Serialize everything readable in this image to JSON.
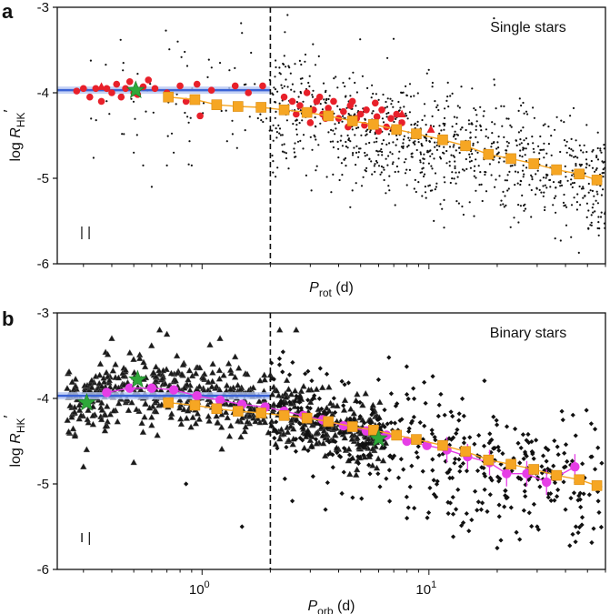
{
  "figure": {
    "colors": {
      "black": "#111111",
      "red": "#e8202a",
      "orange": "#f6a623",
      "magenta": "#e63ee6",
      "green": "#2ea83a",
      "blue": "#3a63d6",
      "gray": "#8a8a8a"
    }
  },
  "chart_data": [
    {
      "panel_letter": "a",
      "title": "Single stars",
      "type": "scatter",
      "x_scale": "log",
      "xlim": [
        0.23,
        60
      ],
      "ylim": [
        -6,
        -3
      ],
      "yticks": [
        "-3",
        "-4",
        "-5",
        "-6"
      ],
      "ytick_values": [
        -3,
        -4,
        -5,
        -6
      ],
      "xticks": [],
      "xlabel_main": "P",
      "xlabel_sub": "rot",
      "xlabel_unit": " (d)",
      "ylabel_main": "log R",
      "ylabel_sub": "HK",
      "ylabel_prime": "′",
      "divider_x": 2.0,
      "saturated_level": {
        "value": -3.97,
        "x_start": 0.23,
        "x_end": 2.0
      },
      "background_cloud": {
        "description_free": true,
        "trend": [
          [
            0.25,
            -4.0
          ],
          [
            1.0,
            -4.05
          ],
          [
            2.0,
            -4.15
          ],
          [
            5.0,
            -4.4
          ],
          [
            10.0,
            -4.6
          ],
          [
            20.0,
            -4.75
          ],
          [
            40.0,
            -4.95
          ],
          [
            55.0,
            -5.05
          ]
        ],
        "spread": 0.35,
        "n_points": 1500,
        "sparse_left": [
          [
            0.5,
            -4.7
          ],
          [
            0.55,
            -4.85
          ],
          [
            0.75,
            -4.7
          ],
          [
            0.7,
            -4.85
          ],
          [
            0.45,
            -3.65
          ],
          [
            1.2,
            -3.65
          ],
          [
            1.5,
            -3.3
          ],
          [
            0.9,
            -4.85
          ],
          [
            0.6,
            -5.1
          ]
        ]
      },
      "series": [
        {
          "marker": "circle",
          "color": "#e8202a",
          "points": [
            [
              0.28,
              -3.98
            ],
            [
              0.3,
              -3.95
            ],
            [
              0.32,
              -4.05
            ],
            [
              0.34,
              -3.95
            ],
            [
              0.36,
              -4.1
            ],
            [
              0.38,
              -3.95
            ],
            [
              0.4,
              -4.0
            ],
            [
              0.42,
              -3.9
            ],
            [
              0.44,
              -4.05
            ],
            [
              0.46,
              -3.95
            ],
            [
              0.48,
              -3.87
            ],
            [
              0.5,
              -4.0
            ],
            [
              0.52,
              -4.02
            ],
            [
              0.55,
              -3.93
            ],
            [
              0.58,
              -3.85
            ],
            [
              0.62,
              -3.95
            ],
            [
              0.7,
              -4.0
            ],
            [
              0.8,
              -3.92
            ],
            [
              0.85,
              -4.1
            ],
            [
              0.95,
              -3.9
            ],
            [
              1.1,
              -3.97
            ],
            [
              1.4,
              -3.92
            ],
            [
              1.6,
              -4.0
            ],
            [
              1.85,
              -3.92
            ],
            [
              0.98,
              -4.27
            ],
            [
              2.3,
              -4.05
            ],
            [
              2.5,
              -4.1
            ],
            [
              2.7,
              -4.15
            ],
            [
              2.9,
              -4.0
            ],
            [
              3.1,
              -4.2
            ],
            [
              3.2,
              -4.1
            ],
            [
              3.4,
              -4.25
            ],
            [
              3.6,
              -4.18
            ],
            [
              3.8,
              -4.1
            ],
            [
              4.0,
              -4.3
            ],
            [
              4.2,
              -4.22
            ],
            [
              4.5,
              -4.15
            ],
            [
              4.8,
              -4.3
            ],
            [
              5.0,
              -4.25
            ],
            [
              5.3,
              -4.2
            ],
            [
              5.6,
              -4.35
            ],
            [
              5.9,
              -4.28
            ],
            [
              6.2,
              -4.2
            ],
            [
              6.5,
              -4.4
            ],
            [
              6.8,
              -4.3
            ],
            [
              7.2,
              -4.25
            ],
            [
              7.6,
              -4.35
            ],
            [
              2.6,
              -4.25
            ],
            [
              3.0,
              -4.35
            ],
            [
              3.5,
              -4.3
            ],
            [
              4.4,
              -4.4
            ],
            [
              5.2,
              -4.38
            ],
            [
              6.0,
              -4.45
            ],
            [
              7.0,
              -4.42
            ],
            [
              3.3,
              -4.05
            ],
            [
              4.6,
              -4.1
            ],
            [
              5.8,
              -4.12
            ]
          ]
        },
        {
          "marker": "triangle",
          "color": "#e8202a",
          "points": [
            [
              0.36,
              -3.93
            ],
            [
              7.6,
              -4.25
            ],
            [
              10.2,
              -4.43
            ]
          ]
        },
        {
          "marker": "square",
          "color": "#f6a623",
          "points": [
            [
              0.71,
              -4.05
            ],
            [
              0.93,
              -4.08
            ],
            [
              1.16,
              -4.14
            ],
            [
              1.44,
              -4.16
            ],
            [
              1.82,
              -4.17
            ],
            [
              2.3,
              -4.2
            ],
            [
              2.9,
              -4.23
            ],
            [
              3.6,
              -4.27
            ],
            [
              4.6,
              -4.33
            ],
            [
              5.7,
              -4.37
            ],
            [
              7.2,
              -4.43
            ],
            [
              8.8,
              -4.48
            ],
            [
              11.5,
              -4.55
            ],
            [
              14.5,
              -4.62
            ],
            [
              18.3,
              -4.72
            ],
            [
              23.0,
              -4.77
            ],
            [
              29.0,
              -4.83
            ],
            [
              36.5,
              -4.9
            ],
            [
              46.0,
              -4.95
            ],
            [
              55.0,
              -5.02
            ]
          ]
        },
        {
          "marker": "star",
          "color": "#2ea83a",
          "points": [
            [
              0.51,
              -3.97
            ]
          ]
        }
      ],
      "corner_marks": "| |"
    },
    {
      "panel_letter": "b",
      "title": "Binary stars",
      "type": "scatter",
      "x_scale": "log",
      "xlim": [
        0.23,
        60
      ],
      "ylim": [
        -6,
        -3
      ],
      "yticks": [
        "-3",
        "-4",
        "-5",
        "-6"
      ],
      "ytick_values": [
        -3,
        -4,
        -5,
        -6
      ],
      "xticks": [
        {
          "value": 1,
          "base": "10",
          "exp": "0"
        },
        {
          "value": 10,
          "base": "10",
          "exp": "1"
        }
      ],
      "xlabel_main": "P",
      "xlabel_sub": "orb",
      "xlabel_unit": " (d)",
      "ylabel_main": "log R",
      "ylabel_sub": "HK",
      "ylabel_prime": "′",
      "divider_x": 2.0,
      "saturated_level": {
        "value": -3.97,
        "x_start": 0.23,
        "x_end": 2.0
      },
      "triangle_cloud": {
        "trend": [
          [
            0.25,
            -4.0
          ],
          [
            0.5,
            -3.9
          ],
          [
            1.0,
            -3.95
          ],
          [
            2.0,
            -4.1
          ],
          [
            3.0,
            -4.25
          ],
          [
            6.0,
            -4.45
          ]
        ],
        "spread": 0.2,
        "n_points": 700,
        "outliers": [
          [
            0.3,
            -4.8
          ],
          [
            0.31,
            -4.6
          ],
          [
            0.5,
            -4.75
          ],
          [
            0.65,
            -3.2
          ],
          [
            0.7,
            -3.25
          ],
          [
            0.4,
            -3.3
          ],
          [
            1.2,
            -3.3
          ],
          [
            2.2,
            -3.2
          ],
          [
            2.6,
            -3.2
          ]
        ]
      },
      "cross_cloud": {
        "trend": [
          [
            2.0,
            -4.15
          ],
          [
            4.0,
            -4.35
          ],
          [
            8.0,
            -4.55
          ],
          [
            15.0,
            -4.75
          ],
          [
            30.0,
            -4.9
          ],
          [
            55.0,
            -5.0
          ]
        ],
        "spread": 0.35,
        "n_points": 450,
        "outliers": [
          [
            0.85,
            -5.0
          ],
          [
            1.5,
            -5.5
          ],
          [
            2.5,
            -5.2
          ],
          [
            3.5,
            -5.3
          ],
          [
            8.0,
            -5.4
          ],
          [
            15.0,
            -5.55
          ],
          [
            20.0,
            -5.75
          ],
          [
            30.0,
            -5.5
          ],
          [
            40.0,
            -5.3
          ]
        ]
      },
      "series": [
        {
          "marker": "circle",
          "color": "#e63ee6",
          "points": [
            [
              0.38,
              -3.93
            ],
            [
              0.48,
              -3.88
            ],
            [
              0.6,
              -3.88
            ],
            [
              0.75,
              -3.9
            ],
            [
              0.95,
              -3.97
            ],
            [
              1.2,
              -4.02
            ],
            [
              1.5,
              -4.07
            ],
            [
              1.9,
              -4.1
            ],
            [
              2.3,
              -4.15
            ],
            [
              2.8,
              -4.2
            ],
            [
              3.4,
              -4.25
            ],
            [
              4.2,
              -4.32
            ],
            [
              5.3,
              -4.38
            ],
            [
              6.5,
              -4.43
            ],
            [
              8.0,
              -4.5
            ],
            [
              9.8,
              -4.55
            ],
            [
              12.0,
              -4.6
            ],
            [
              14.8,
              -4.68
            ],
            [
              18.5,
              -4.75
            ],
            [
              22.0,
              -4.88
            ],
            [
              27.0,
              -4.88
            ],
            [
              33.0,
              -4.98
            ],
            [
              44.0,
              -4.8
            ]
          ]
        },
        {
          "marker": "square",
          "color": "#f6a623",
          "points": [
            [
              0.71,
              -4.05
            ],
            [
              0.93,
              -4.08
            ],
            [
              1.16,
              -4.12
            ],
            [
              1.44,
              -4.15
            ],
            [
              1.82,
              -4.17
            ],
            [
              2.3,
              -4.2
            ],
            [
              2.9,
              -4.23
            ],
            [
              3.6,
              -4.27
            ],
            [
              4.6,
              -4.33
            ],
            [
              5.7,
              -4.37
            ],
            [
              7.2,
              -4.43
            ],
            [
              8.8,
              -4.48
            ],
            [
              11.5,
              -4.55
            ],
            [
              14.5,
              -4.62
            ],
            [
              18.3,
              -4.72
            ],
            [
              23.0,
              -4.77
            ],
            [
              29.0,
              -4.83
            ],
            [
              36.5,
              -4.9
            ],
            [
              46.0,
              -4.95
            ],
            [
              55.0,
              -5.02
            ]
          ]
        },
        {
          "marker": "star",
          "color": "#2ea83a",
          "points": [
            [
              0.31,
              -4.05
            ],
            [
              0.52,
              -3.78
            ],
            [
              6.0,
              -4.47
            ]
          ]
        }
      ],
      "corner_marks": "I |"
    }
  ]
}
